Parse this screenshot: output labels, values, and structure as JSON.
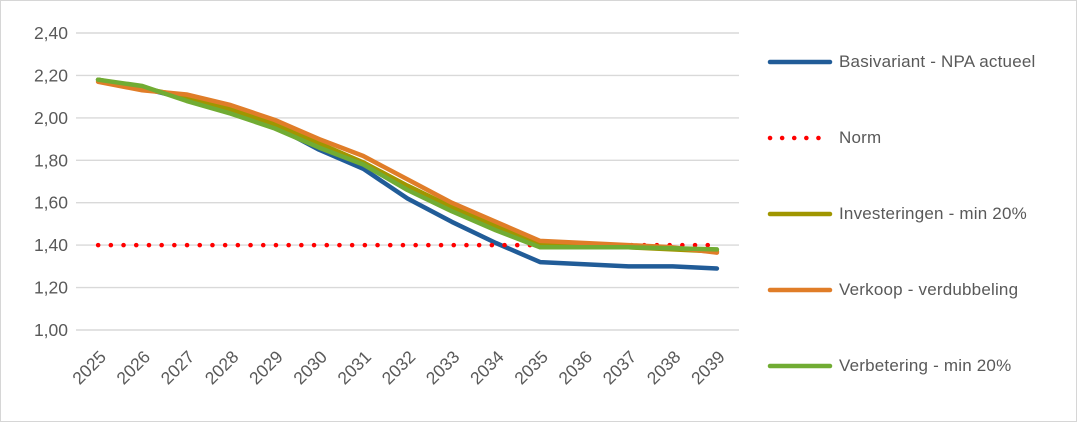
{
  "chart_data": {
    "type": "line",
    "title": "",
    "xlabel": "",
    "ylabel": "",
    "x": [
      2025,
      2026,
      2027,
      2028,
      2029,
      2030,
      2031,
      2032,
      2033,
      2034,
      2035,
      2036,
      2037,
      2038,
      2039
    ],
    "ylim": [
      1.0,
      2.4
    ],
    "ytick_step": 0.2,
    "y_tick_labels": [
      "1,00",
      "1,20",
      "1,40",
      "1,60",
      "1,80",
      "2,00",
      "2,20",
      "2,40"
    ],
    "decimal_separator": ",",
    "grid": "horizontal",
    "gridline_color": "#d9d9d9",
    "label_color": "#595959",
    "legend_position": "right",
    "series": [
      {
        "name": "Basivariant - NPA actueel",
        "color": "#215c98",
        "style": "solid",
        "values": [
          2.18,
          2.14,
          2.09,
          2.03,
          1.96,
          1.85,
          1.76,
          1.62,
          1.51,
          1.41,
          1.32,
          1.31,
          1.3,
          1.3,
          1.29
        ]
      },
      {
        "name": "Norm",
        "color": "#ff0000",
        "style": "dotted",
        "values": [
          1.4,
          1.4,
          1.4,
          1.4,
          1.4,
          1.4,
          1.4,
          1.4,
          1.4,
          1.4,
          1.4,
          1.4,
          1.4,
          1.4,
          1.4
        ]
      },
      {
        "name": "Investeringen - min 20%",
        "color": "#a09600",
        "style": "solid",
        "values": [
          2.18,
          2.14,
          2.1,
          2.04,
          1.97,
          1.88,
          1.79,
          1.68,
          1.58,
          1.49,
          1.4,
          1.4,
          1.39,
          1.38,
          1.37
        ]
      },
      {
        "name": "Verkoop - verdubbeling",
        "color": "#e07d28",
        "style": "solid",
        "values": [
          2.17,
          2.13,
          2.11,
          2.06,
          1.99,
          1.9,
          1.82,
          1.71,
          1.6,
          1.51,
          1.42,
          1.41,
          1.4,
          1.39,
          1.365
        ]
      },
      {
        "name": "Verbetering - min 20%",
        "color": "#71ac33",
        "style": "solid",
        "values": [
          2.18,
          2.15,
          2.08,
          2.02,
          1.95,
          1.86,
          1.78,
          1.66,
          1.56,
          1.47,
          1.39,
          1.39,
          1.39,
          1.385,
          1.38
        ]
      }
    ]
  }
}
